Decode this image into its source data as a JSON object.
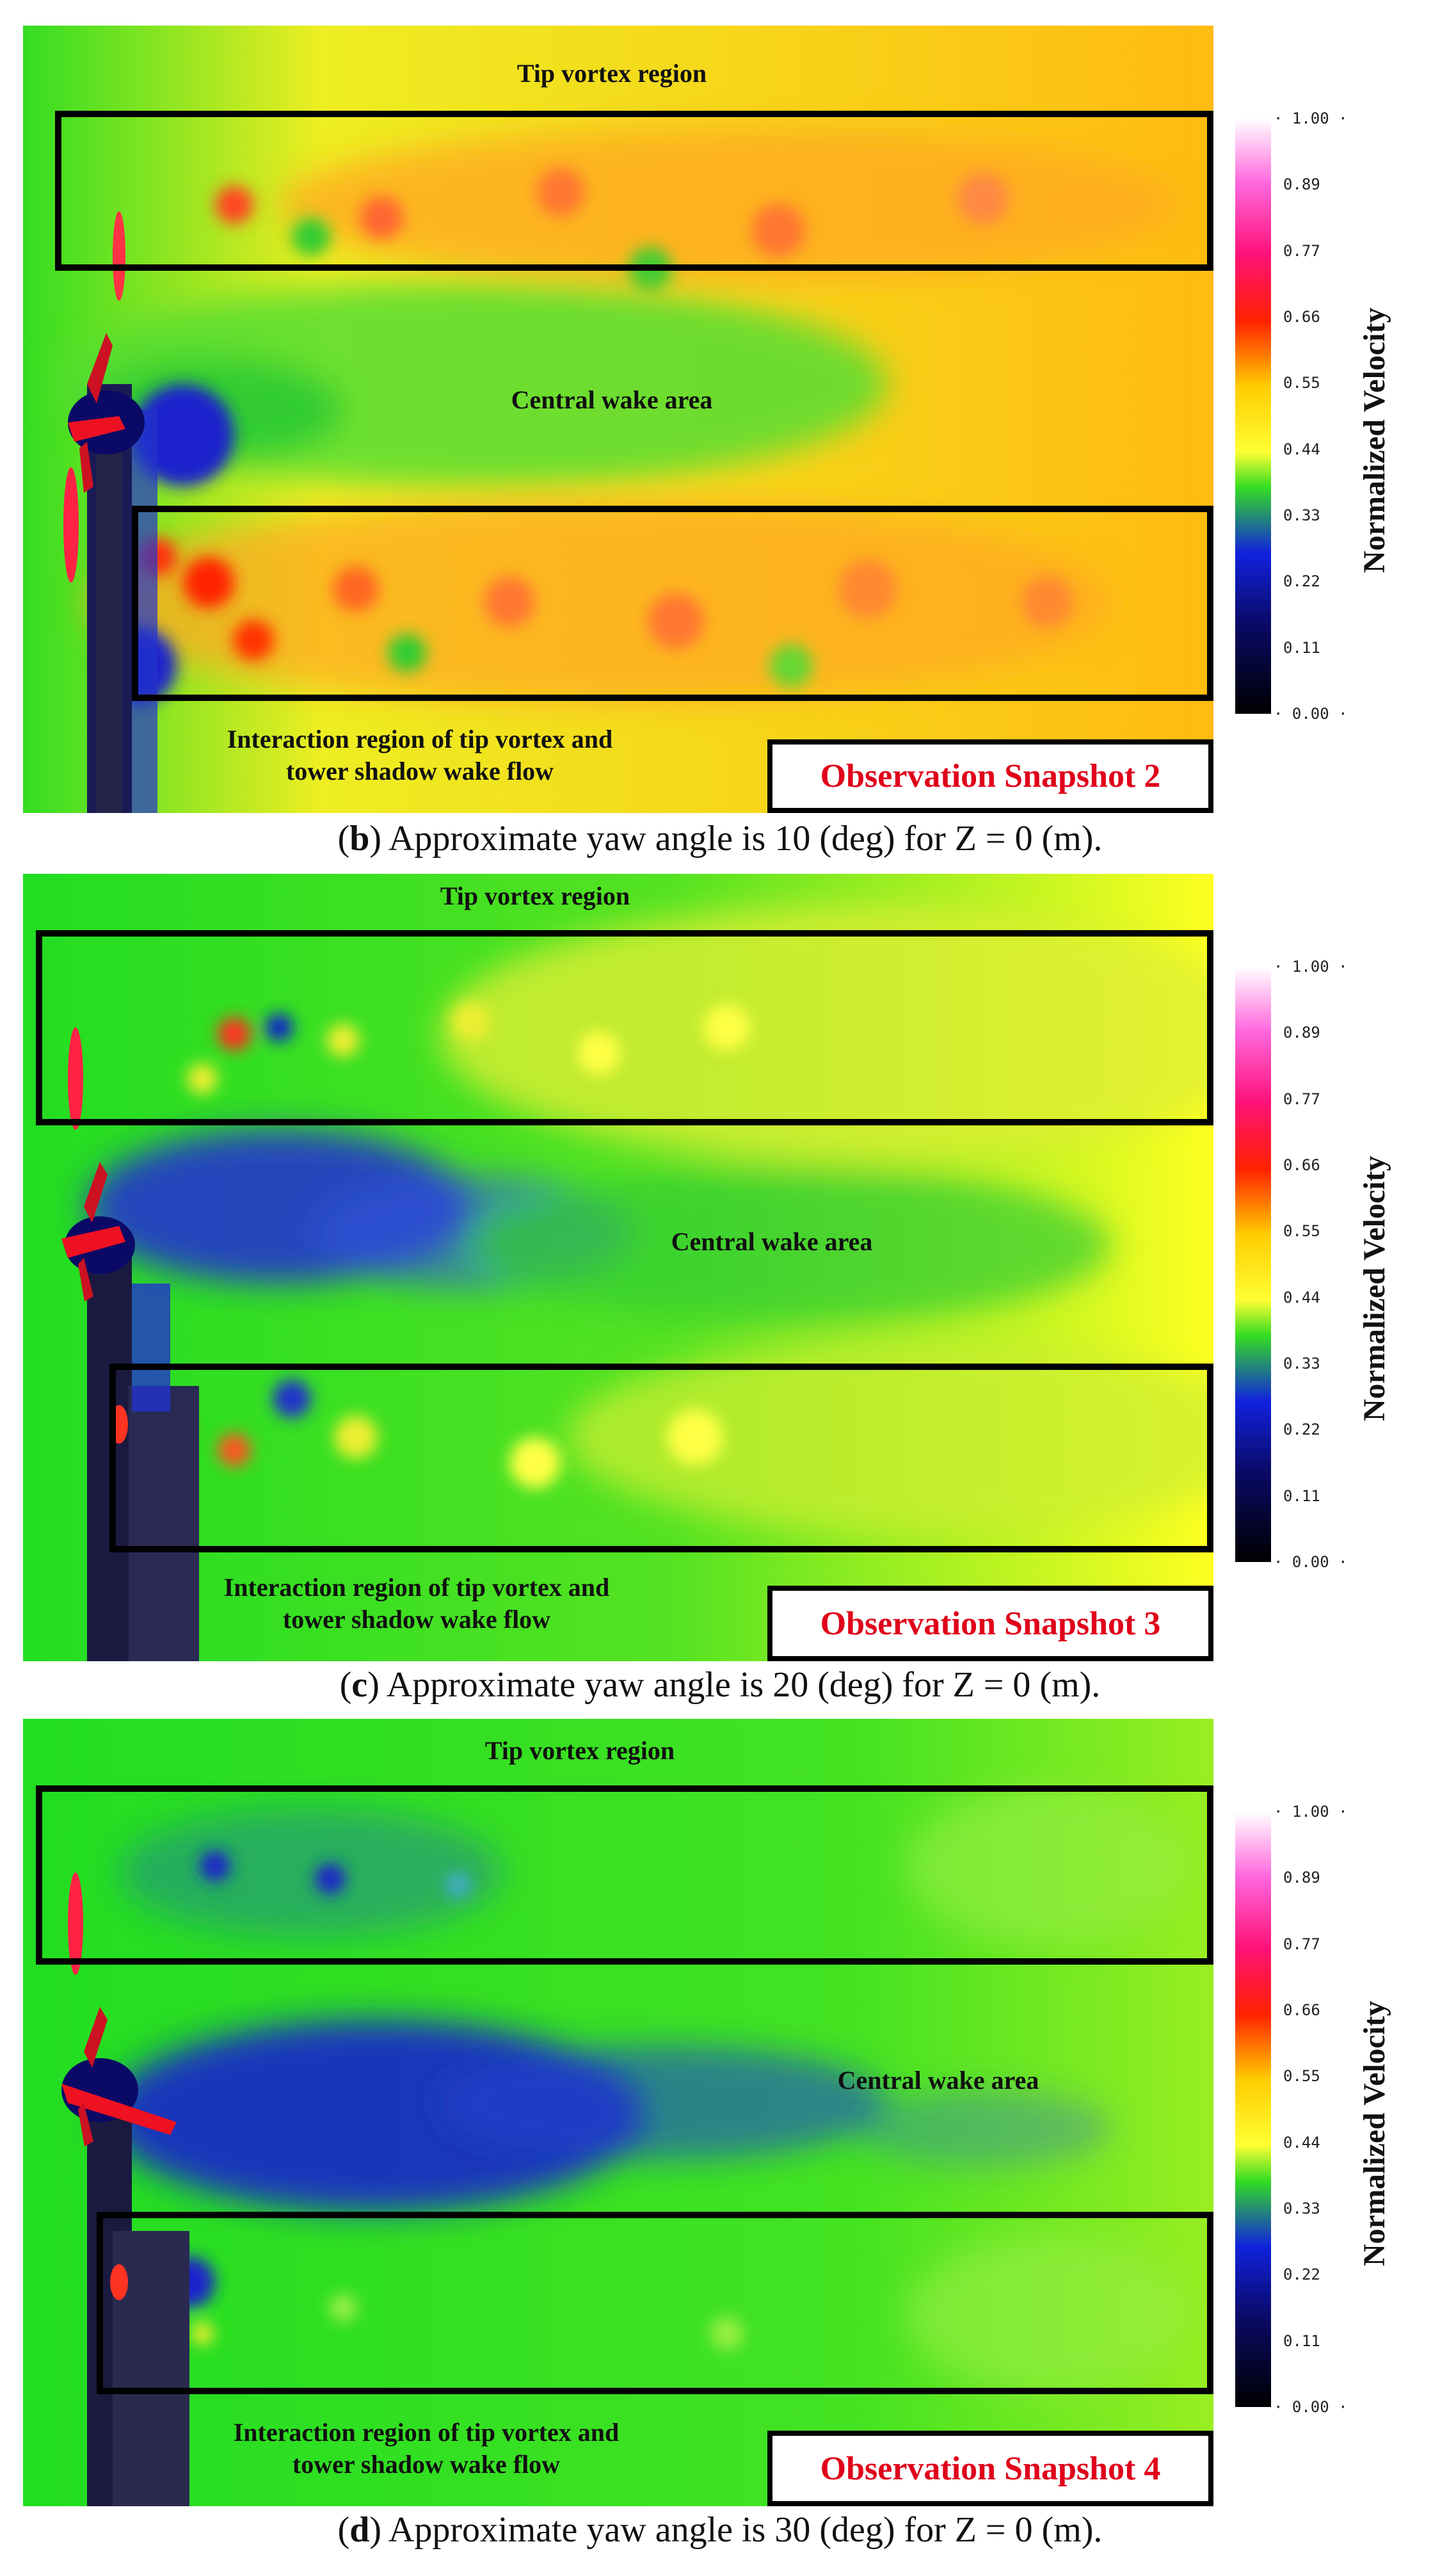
{
  "colorbar": {
    "title": "Normalized Velocity",
    "ticks": [
      "1.00",
      "0.89",
      "0.77",
      "0.66",
      "0.55",
      "0.44",
      "0.33",
      "0.22",
      "0.11",
      "0.00"
    ]
  },
  "panels": [
    {
      "tip_label": "Tip vortex region",
      "central_label": "Central wake area",
      "interaction_label_1": "Interaction region of tip vortex and",
      "interaction_label_2": "tower shadow wake flow",
      "snapshot": "Observation Snapshot 2",
      "caption_letter": "b",
      "caption_text": ") Approximate yaw angle is 10 (deg) for Z = 0 (m)."
    },
    {
      "tip_label": "Tip vortex region",
      "central_label": "Central wake area",
      "interaction_label_1": "Interaction region of tip vortex and",
      "interaction_label_2": "tower shadow wake flow",
      "snapshot": "Observation Snapshot 3",
      "caption_letter": "c",
      "caption_text": ") Approximate yaw angle is 20 (deg) for Z = 0 (m)."
    },
    {
      "tip_label": "Tip vortex region",
      "central_label": "Central wake area",
      "interaction_label_1": "Interaction region of tip vortex and",
      "interaction_label_2": "tower shadow wake flow",
      "snapshot": "Observation Snapshot 4",
      "caption_letter": "d",
      "caption_text": ") Approximate yaw angle is 30 (deg) for Z = 0 (m)."
    }
  ]
}
